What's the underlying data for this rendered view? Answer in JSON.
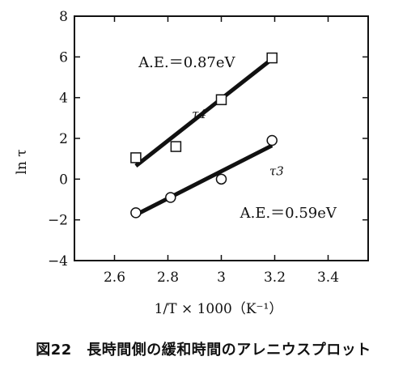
{
  "chart_data": {
    "type": "scatter",
    "xlabel": "1/T × 1000（K⁻¹）",
    "ylabel": "ln τ",
    "xlim": [
      2.45,
      3.55
    ],
    "ylim": [
      -4,
      8
    ],
    "xticks": [
      2.6,
      2.8,
      3.0,
      3.2,
      3.4
    ],
    "xtick_labels": [
      "2.6",
      "2.8",
      "3",
      "3.2",
      "3.4"
    ],
    "yticks": [
      -4,
      -2,
      0,
      2,
      4,
      6,
      8
    ],
    "ytick_labels": [
      "−4",
      "−2",
      "0",
      "2",
      "4",
      "6",
      "8"
    ],
    "grid": false,
    "series": [
      {
        "name": "τ4",
        "marker": "square",
        "x": [
          2.68,
          2.83,
          3.0,
          3.19
        ],
        "y": [
          1.05,
          1.6,
          3.9,
          5.95
        ],
        "fit": {
          "x": [
            2.68,
            3.19
          ],
          "y": [
            0.65,
            5.9
          ]
        }
      },
      {
        "name": "τ3",
        "marker": "circle",
        "x": [
          2.68,
          2.81,
          3.0,
          3.19
        ],
        "y": [
          -1.65,
          -0.9,
          0.0,
          1.9
        ],
        "fit": {
          "x": [
            2.68,
            3.19
          ],
          "y": [
            -1.75,
            1.65
          ]
        }
      }
    ],
    "annotations": [
      {
        "text": "A.E.＝0.87eV",
        "x": 2.69,
        "y": 5.5
      },
      {
        "text": "τ4",
        "x": 2.89,
        "y": 3.0
      },
      {
        "text": "τ3",
        "x": 3.18,
        "y": 0.2
      },
      {
        "text": "A.E.＝0.59eV",
        "x": 3.07,
        "y": -1.9
      }
    ],
    "caption": "図22　長時間側の緩和時間のアレニウスプロット"
  }
}
